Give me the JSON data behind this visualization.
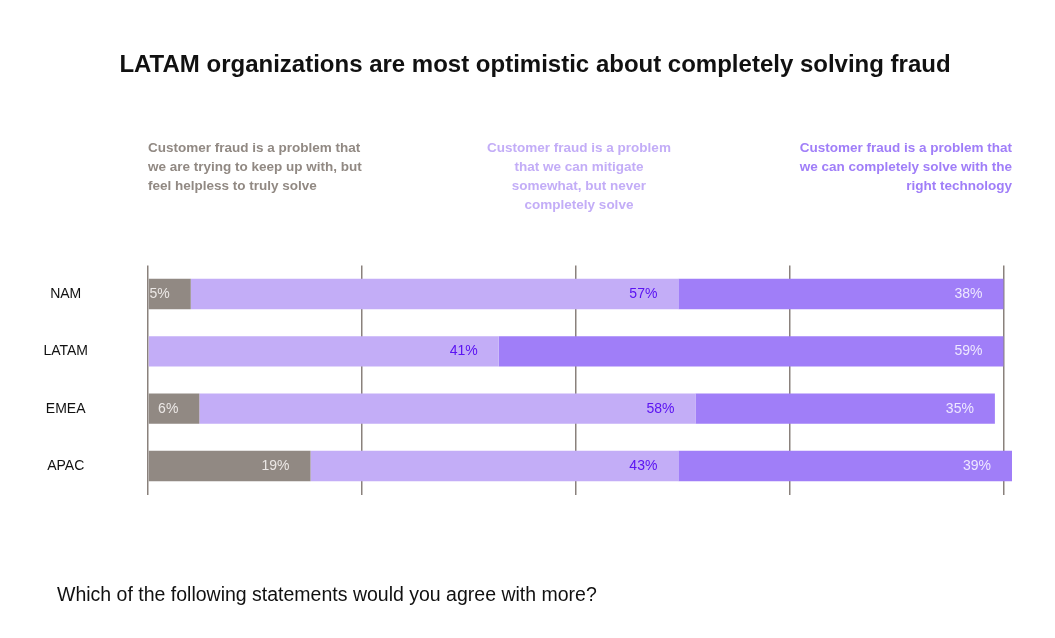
{
  "chart_data": {
    "type": "bar",
    "orientation": "horizontal",
    "stacked": true,
    "title": "LATAM organizations are most optimistic about completely solving fraud",
    "annotations": [
      "Which of the following statements would you agree with more?"
    ],
    "categories": [
      "NAM",
      "LATAM",
      "EMEA",
      "APAC"
    ],
    "series": [
      {
        "name": "Customer fraud is a problem that we are trying to keep up with, but feel helpless to truly solve",
        "color": "#918983",
        "values": [
          5,
          null,
          6,
          19
        ],
        "value_labels": [
          "5%",
          null,
          "6%",
          "19%"
        ]
      },
      {
        "name": "Customer fraud is a problem that we can mitigate somewhat, but never completely solve",
        "color": "#c3adf7",
        "values": [
          57,
          41,
          58,
          43
        ],
        "value_labels": [
          "57%",
          "41%",
          "58%",
          "43%"
        ]
      },
      {
        "name": "Customer fraud is a problem that we can completely solve with the right technology",
        "color": "#a07ef8",
        "values": [
          38,
          59,
          35,
          39
        ],
        "value_labels": [
          "38%",
          "59%",
          "35%",
          "39%"
        ]
      }
    ],
    "xlim": [
      0,
      101
    ],
    "xticks": [
      {
        "value": 0,
        "label": null
      },
      {
        "value": 25,
        "label": null
      },
      {
        "value": 50,
        "label": null
      },
      {
        "value": 75,
        "label": null
      },
      {
        "value": 100,
        "label": null
      }
    ],
    "tick_labels": "y",
    "grid": "x",
    "legend": "top"
  }
}
